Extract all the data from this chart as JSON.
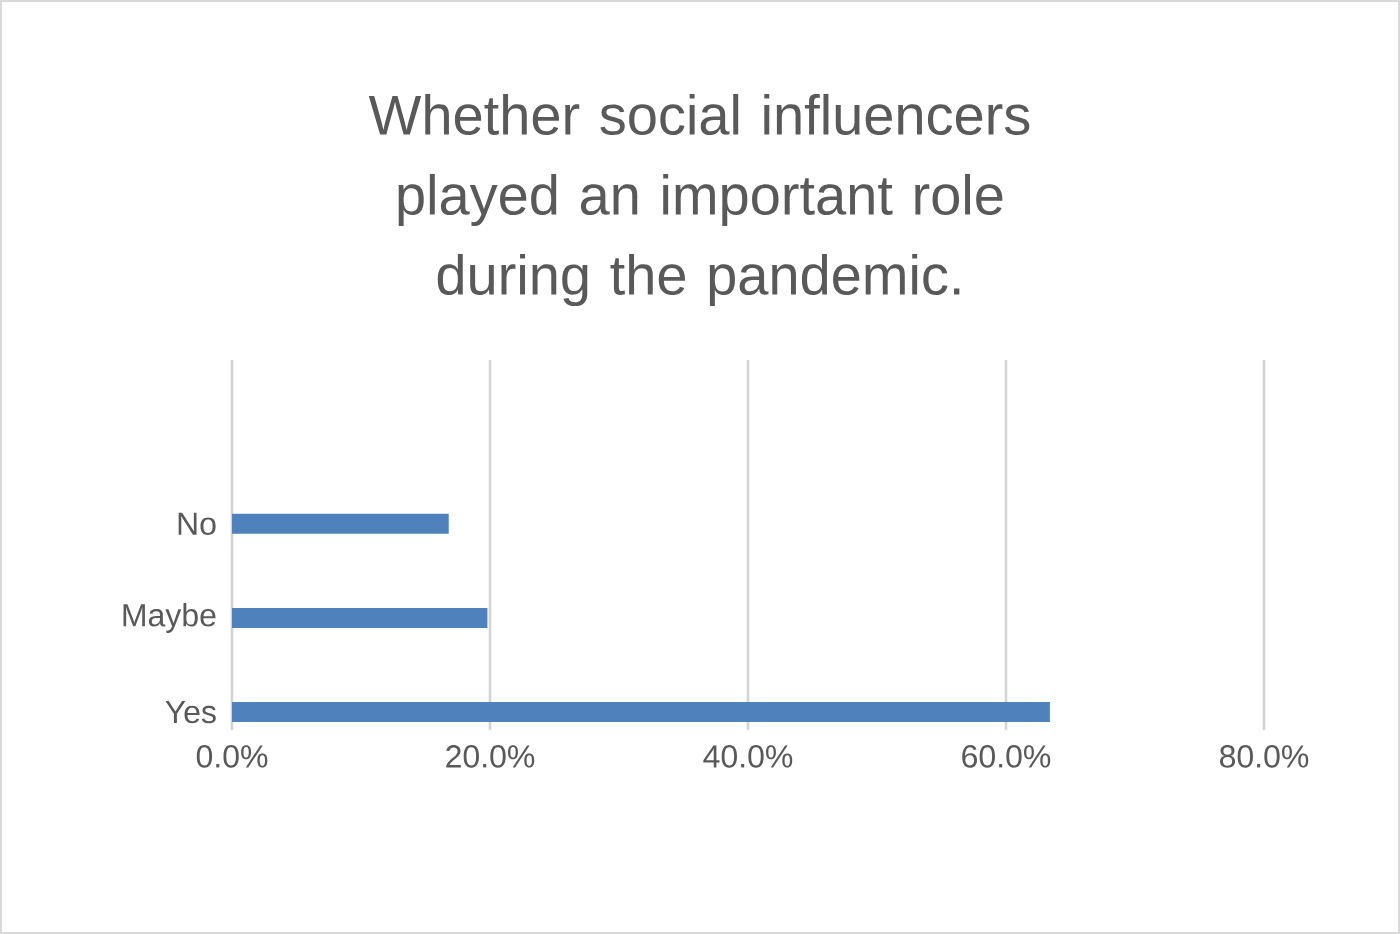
{
  "chart_data": {
    "type": "bar",
    "orientation": "horizontal",
    "title": "Whether social influencers played an important role during the pandemic.",
    "categories": [
      "No",
      "Maybe",
      "Yes"
    ],
    "values": [
      16.8,
      19.8,
      63.4
    ],
    "color": "#4f81bd",
    "xlim": [
      0,
      80
    ],
    "xticks": [
      {
        "value": 0,
        "label": "0.0%"
      },
      {
        "value": 20,
        "label": "20.0%"
      },
      {
        "value": 40,
        "label": "40.0%"
      },
      {
        "value": 60,
        "label": "60.0%"
      },
      {
        "value": 80,
        "label": "80.0%"
      }
    ],
    "grid": "x"
  }
}
